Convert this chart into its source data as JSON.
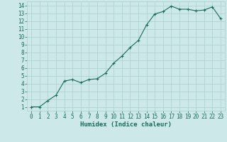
{
  "x": [
    0,
    1,
    2,
    3,
    4,
    5,
    6,
    7,
    8,
    9,
    10,
    11,
    12,
    13,
    14,
    15,
    16,
    17,
    18,
    19,
    20,
    21,
    22,
    23
  ],
  "y": [
    1.0,
    1.0,
    1.8,
    2.5,
    4.3,
    4.5,
    4.1,
    4.5,
    4.6,
    5.3,
    6.6,
    7.5,
    8.6,
    9.5,
    11.5,
    12.9,
    13.2,
    13.9,
    13.5,
    13.5,
    13.3,
    13.4,
    13.8,
    12.3
  ],
  "line_color": "#1a6b5a",
  "marker": "+",
  "marker_size": 3,
  "marker_lw": 0.8,
  "bg_color": "#cce8e8",
  "grid_color": "#aacfcf",
  "xlabel": "Humidex (Indice chaleur)",
  "ylim": [
    0.5,
    14.5
  ],
  "xlim": [
    -0.5,
    23.5
  ],
  "yticks": [
    1,
    2,
    3,
    4,
    5,
    6,
    7,
    8,
    9,
    10,
    11,
    12,
    13,
    14
  ],
  "xticks": [
    0,
    1,
    2,
    3,
    4,
    5,
    6,
    7,
    8,
    9,
    10,
    11,
    12,
    13,
    14,
    15,
    16,
    17,
    18,
    19,
    20,
    21,
    22,
    23
  ],
  "tick_color": "#1a6b5a",
  "xlabel_fontsize": 6.5,
  "tick_fontsize": 5.5,
  "linewidth": 0.8
}
